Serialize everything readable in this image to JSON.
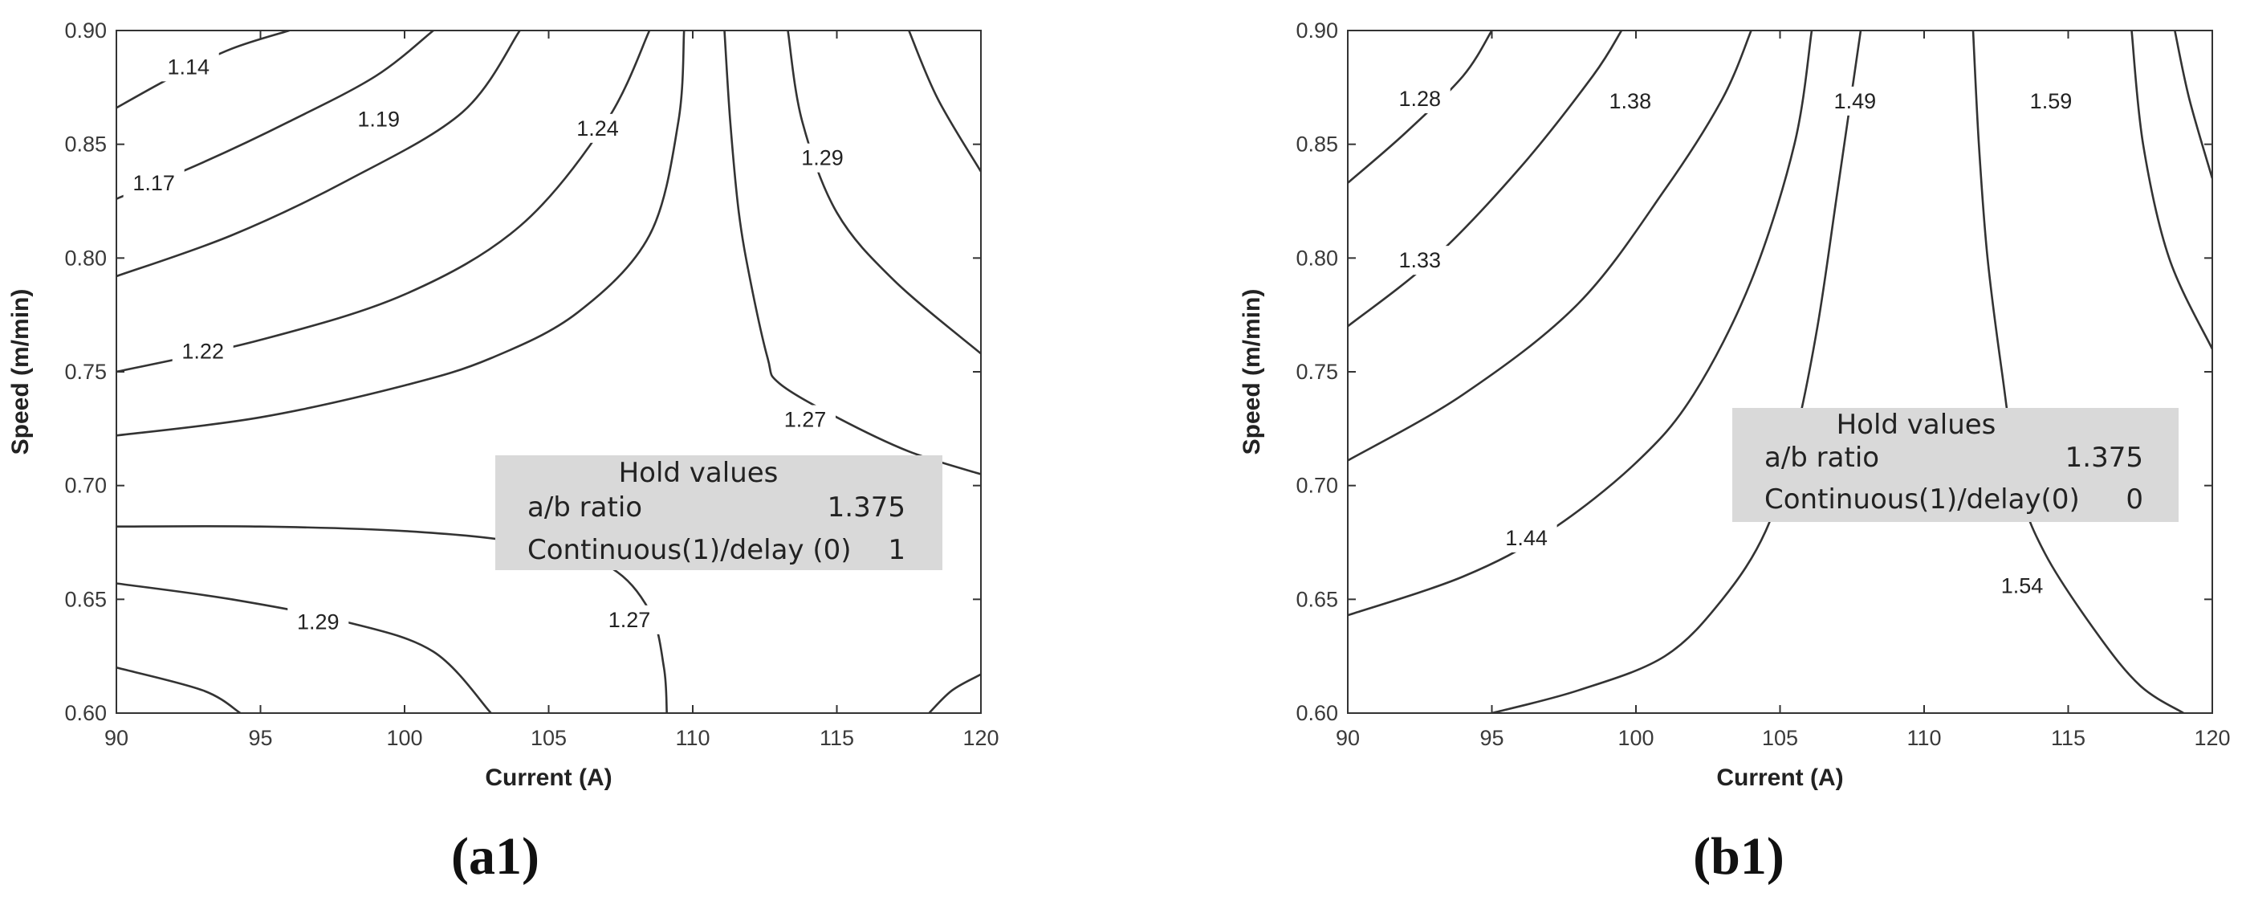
{
  "chart_data": [
    {
      "type": "contour",
      "panel_label": "(a1)",
      "xlabel": "Current (A)",
      "ylabel": "Speed (m/min)",
      "xlim": [
        90,
        120
      ],
      "ylim": [
        0.6,
        0.9
      ],
      "xticks": [
        "90",
        "95",
        "100",
        "105",
        "110",
        "115",
        "120"
      ],
      "yticks": [
        "0.60",
        "0.65",
        "0.70",
        "0.75",
        "0.80",
        "0.85",
        "0.90"
      ],
      "grid": false,
      "contours": [
        {
          "level": "1.14",
          "path": [
            [
              90,
              0.866
            ],
            [
              92,
              0.88
            ],
            [
              94,
              0.892
            ],
            [
              96,
              0.9
            ]
          ]
        },
        {
          "level": "1.17",
          "path": [
            [
              90,
              0.826
            ],
            [
              93,
              0.842
            ],
            [
              96,
              0.86
            ],
            [
              99,
              0.88
            ],
            [
              101,
              0.9
            ]
          ]
        },
        {
          "level": "1.19",
          "path": [
            [
              90,
              0.792
            ],
            [
              94,
              0.81
            ],
            [
              98,
              0.834
            ],
            [
              102,
              0.864
            ],
            [
              104,
              0.9
            ]
          ]
        },
        {
          "level": "1.22",
          "path": [
            [
              90,
              0.75
            ],
            [
              95,
              0.764
            ],
            [
              100,
              0.784
            ],
            [
              104,
              0.814
            ],
            [
              107,
              0.86
            ],
            [
              108.5,
              0.9
            ]
          ]
        },
        {
          "level": "1.24",
          "path": [
            [
              90,
              0.722
            ],
            [
              95,
              0.73
            ],
            [
              100,
              0.744
            ],
            [
              103,
              0.756
            ],
            [
              106,
              0.776
            ],
            [
              108.5,
              0.81
            ],
            [
              109.5,
              0.86
            ],
            [
              109.7,
              0.9
            ]
          ]
        },
        {
          "level": "1.29",
          "path": [
            [
              111.1,
              0.9
            ],
            [
              111.3,
              0.86
            ],
            [
              111.6,
              0.82
            ],
            [
              112,
              0.79
            ],
            [
              112.6,
              0.756
            ],
            [
              113,
              0.745
            ],
            [
              115,
              0.73
            ],
            [
              117.5,
              0.715
            ],
            [
              120,
              0.705
            ]
          ]
        },
        {
          "level": "1.29",
          "path": [
            [
              113.3,
              0.9
            ],
            [
              113.8,
              0.86
            ],
            [
              115,
              0.82
            ],
            [
              117,
              0.79
            ],
            [
              120,
              0.758
            ]
          ]
        },
        {
          "level": "1.27",
          "path": [
            [
              117.5,
              0.9
            ],
            [
              118.5,
              0.87
            ],
            [
              120,
              0.838
            ]
          ]
        },
        {
          "level": "1.27",
          "path": [
            [
              90,
              0.682
            ],
            [
              95,
              0.682
            ],
            [
              100,
              0.68
            ],
            [
              104,
              0.675
            ],
            [
              107,
              0.665
            ],
            [
              108.5,
              0.645
            ],
            [
              109,
              0.62
            ],
            [
              109.1,
              0.6
            ]
          ]
        },
        {
          "level": "1.29",
          "path": [
            [
              90,
              0.657
            ],
            [
              94,
              0.65
            ],
            [
              98,
              0.64
            ],
            [
              101,
              0.627
            ],
            [
              103,
              0.6
            ]
          ]
        },
        {
          "level": "1.29",
          "path": [
            [
              90,
              0.62
            ],
            [
              93,
              0.61
            ],
            [
              94.3,
              0.6
            ]
          ]
        },
        {
          "level": "1.29",
          "path": [
            [
              118.2,
              0.6
            ],
            [
              119,
              0.61
            ],
            [
              120,
              0.617
            ]
          ]
        }
      ],
      "contour_labels": [
        {
          "text": "1.14",
          "at": [
            92.5,
            0.884
          ]
        },
        {
          "text": "1.19",
          "at": [
            99.1,
            0.861
          ]
        },
        {
          "text": "1.17",
          "at": [
            91.3,
            0.833
          ]
        },
        {
          "text": "1.24",
          "at": [
            106.7,
            0.857
          ]
        },
        {
          "text": "1.29",
          "at": [
            114.5,
            0.844
          ]
        },
        {
          "text": "1.22",
          "at": [
            93.0,
            0.759
          ]
        },
        {
          "text": "1.27",
          "at": [
            113.9,
            0.729
          ]
        },
        {
          "text": "1.29",
          "at": [
            97.0,
            0.64
          ]
        },
        {
          "text": "1.27",
          "at": [
            107.8,
            0.641
          ]
        }
      ],
      "hold_values": {
        "title": "Hold values",
        "rows": [
          {
            "label": "a/b ratio",
            "value": "1.375"
          },
          {
            "label": "Continuous(1)/delay (0)",
            "value": "1"
          }
        ]
      }
    },
    {
      "type": "contour",
      "panel_label": "(b1)",
      "xlabel": "Current (A)",
      "ylabel": "Speed (m/min)",
      "xlim": [
        90,
        120
      ],
      "ylim": [
        0.6,
        0.9
      ],
      "xticks": [
        "90",
        "95",
        "100",
        "105",
        "110",
        "115",
        "120"
      ],
      "yticks": [
        "0.60",
        "0.65",
        "0.70",
        "0.75",
        "0.80",
        "0.85",
        "0.90"
      ],
      "grid": false,
      "contours": [
        {
          "level": "1.28",
          "path": [
            [
              90,
              0.833
            ],
            [
              92,
              0.855
            ],
            [
              94,
              0.88
            ],
            [
              95,
              0.9
            ]
          ]
        },
        {
          "level": "1.33",
          "path": [
            [
              90,
              0.77
            ],
            [
              93,
              0.8
            ],
            [
              96,
              0.84
            ],
            [
              98.5,
              0.88
            ],
            [
              99.5,
              0.9
            ]
          ]
        },
        {
          "level": "1.38",
          "path": [
            [
              90,
              0.711
            ],
            [
              94,
              0.74
            ],
            [
              98,
              0.78
            ],
            [
              101,
              0.83
            ],
            [
              103,
              0.87
            ],
            [
              104,
              0.9
            ]
          ]
        },
        {
          "level": "1.44",
          "path": [
            [
              90,
              0.643
            ],
            [
              94,
              0.66
            ],
            [
              97,
              0.68
            ],
            [
              100,
              0.71
            ],
            [
              102,
              0.74
            ],
            [
              104,
              0.79
            ],
            [
              105.5,
              0.85
            ],
            [
              106.1,
              0.9
            ]
          ]
        },
        {
          "level": "1.49",
          "path": [
            [
              95,
              0.6
            ],
            [
              98,
              0.61
            ],
            [
              101,
              0.625
            ],
            [
              103,
              0.65
            ],
            [
              104.5,
              0.68
            ],
            [
              105.5,
              0.72
            ],
            [
              106.3,
              0.77
            ],
            [
              107,
              0.83
            ],
            [
              107.8,
              0.9
            ]
          ]
        },
        {
          "level": "1.54",
          "path": [
            [
              111.7,
              0.9
            ],
            [
              111.9,
              0.85
            ],
            [
              112.2,
              0.8
            ],
            [
              112.7,
              0.75
            ],
            [
              113.3,
              0.7
            ],
            [
              114.2,
              0.67
            ],
            [
              116,
              0.635
            ],
            [
              117.5,
              0.612
            ],
            [
              119,
              0.6
            ]
          ]
        },
        {
          "level": "1.59",
          "path": [
            [
              117.2,
              0.9
            ],
            [
              117.6,
              0.85
            ],
            [
              118.5,
              0.8
            ],
            [
              120,
              0.76
            ]
          ]
        },
        {
          "level": "1.59",
          "path": [
            [
              118.7,
              0.9
            ],
            [
              119.2,
              0.87
            ],
            [
              120,
              0.835
            ]
          ]
        }
      ],
      "contour_labels": [
        {
          "text": "1.28",
          "at": [
            92.5,
            0.87
          ]
        },
        {
          "text": "1.38",
          "at": [
            99.8,
            0.869
          ]
        },
        {
          "text": "1.49",
          "at": [
            107.6,
            0.869
          ]
        },
        {
          "text": "1.59",
          "at": [
            114.4,
            0.869
          ]
        },
        {
          "text": "1.33",
          "at": [
            92.5,
            0.799
          ]
        },
        {
          "text": "1.44",
          "at": [
            96.2,
            0.677
          ]
        },
        {
          "text": "1.54",
          "at": [
            113.4,
            0.656
          ]
        }
      ],
      "hold_values": {
        "title": "Hold values",
        "rows": [
          {
            "label": "a/b ratio",
            "value": "1.375"
          },
          {
            "label": "Continuous(1)/delay(0)",
            "value": "0"
          }
        ]
      }
    }
  ]
}
